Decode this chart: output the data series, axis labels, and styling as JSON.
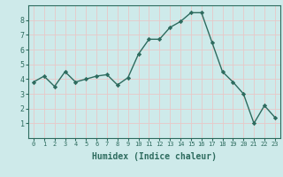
{
  "x": [
    0,
    1,
    2,
    3,
    4,
    5,
    6,
    7,
    8,
    9,
    10,
    11,
    12,
    13,
    14,
    15,
    16,
    17,
    18,
    19,
    20,
    21,
    22,
    23
  ],
  "y": [
    3.8,
    4.2,
    3.5,
    4.5,
    3.8,
    4.0,
    4.2,
    4.3,
    3.6,
    4.1,
    5.7,
    6.7,
    6.7,
    7.5,
    7.9,
    8.5,
    8.5,
    6.5,
    4.5,
    3.8,
    3.0,
    1.0,
    2.2,
    1.4
  ],
  "line_color": "#2d6b5e",
  "marker": "D",
  "marker_size": 2.2,
  "line_width": 1.0,
  "xlabel": "Humidex (Indice chaleur)",
  "xlabel_fontsize": 7,
  "bg_color": "#ceeaea",
  "grid_color": "#e8c8c8",
  "tick_color": "#2d6b5e",
  "label_color": "#2d6b5e",
  "xlim": [
    -0.5,
    23.5
  ],
  "ylim": [
    0,
    9
  ],
  "yticks": [
    1,
    2,
    3,
    4,
    5,
    6,
    7,
    8
  ],
  "xticks": [
    0,
    1,
    2,
    3,
    4,
    5,
    6,
    7,
    8,
    9,
    10,
    11,
    12,
    13,
    14,
    15,
    16,
    17,
    18,
    19,
    20,
    21,
    22,
    23
  ],
  "tick_fontsize_x": 5.0,
  "tick_fontsize_y": 6.0
}
